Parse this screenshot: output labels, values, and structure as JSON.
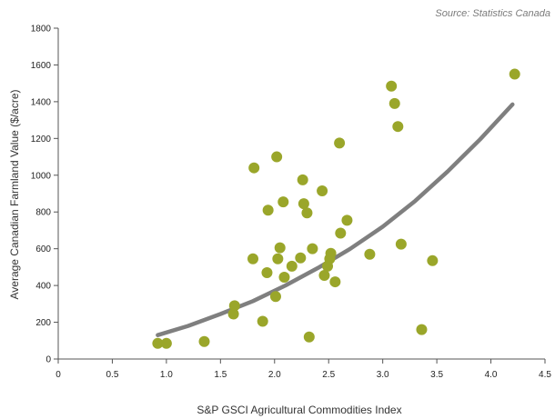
{
  "chart_data": {
    "type": "scatter",
    "source_note": "Source: Statistics Canada",
    "xlabel": "S&P GSCI Agricultural Commodities Index",
    "ylabel": "Average Canadian Farmland Value ($/acre)",
    "xlim": [
      0,
      4.5
    ],
    "ylim": [
      0,
      1800
    ],
    "xticks": [
      0,
      0.5,
      1.0,
      1.5,
      2.0,
      2.5,
      3.0,
      3.5,
      4.0,
      4.5
    ],
    "xtick_labels": [
      "0",
      "0.5",
      "1.0",
      "1.5",
      "2.0",
      "2.5",
      "3.0",
      "3.5",
      "4.0",
      "4.5"
    ],
    "yticks": [
      0,
      200,
      400,
      600,
      800,
      1000,
      1200,
      1400,
      1600,
      1800
    ],
    "ytick_labels": [
      "0",
      "200",
      "400",
      "600",
      "800",
      "1000",
      "1200",
      "1400",
      "1600",
      "1800"
    ],
    "grid": false,
    "colors": {
      "points": "#9aa62a",
      "trend": "#7f7f7f",
      "axis": "#555555"
    },
    "points": [
      {
        "x": 0.92,
        "y": 85
      },
      {
        "x": 1.0,
        "y": 85
      },
      {
        "x": 1.35,
        "y": 95
      },
      {
        "x": 1.62,
        "y": 245
      },
      {
        "x": 1.63,
        "y": 290
      },
      {
        "x": 1.8,
        "y": 545
      },
      {
        "x": 1.81,
        "y": 1040
      },
      {
        "x": 1.89,
        "y": 205
      },
      {
        "x": 1.93,
        "y": 470
      },
      {
        "x": 1.94,
        "y": 810
      },
      {
        "x": 2.01,
        "y": 340
      },
      {
        "x": 2.02,
        "y": 1100
      },
      {
        "x": 2.03,
        "y": 545
      },
      {
        "x": 2.05,
        "y": 605
      },
      {
        "x": 2.08,
        "y": 855
      },
      {
        "x": 2.09,
        "y": 445
      },
      {
        "x": 2.16,
        "y": 505
      },
      {
        "x": 2.24,
        "y": 550
      },
      {
        "x": 2.26,
        "y": 975
      },
      {
        "x": 2.27,
        "y": 845
      },
      {
        "x": 2.3,
        "y": 795
      },
      {
        "x": 2.32,
        "y": 120
      },
      {
        "x": 2.35,
        "y": 600
      },
      {
        "x": 2.44,
        "y": 915
      },
      {
        "x": 2.46,
        "y": 455
      },
      {
        "x": 2.49,
        "y": 505
      },
      {
        "x": 2.51,
        "y": 545
      },
      {
        "x": 2.52,
        "y": 575
      },
      {
        "x": 2.56,
        "y": 420
      },
      {
        "x": 2.6,
        "y": 1175
      },
      {
        "x": 2.61,
        "y": 685
      },
      {
        "x": 2.67,
        "y": 755
      },
      {
        "x": 2.88,
        "y": 570
      },
      {
        "x": 3.08,
        "y": 1485
      },
      {
        "x": 3.11,
        "y": 1390
      },
      {
        "x": 3.14,
        "y": 1265
      },
      {
        "x": 3.17,
        "y": 625
      },
      {
        "x": 3.36,
        "y": 160
      },
      {
        "x": 3.46,
        "y": 535
      },
      {
        "x": 4.22,
        "y": 1550
      }
    ],
    "trendline": {
      "type": "exponential",
      "x": [
        0.92,
        1.2,
        1.5,
        1.8,
        2.1,
        2.4,
        2.7,
        3.0,
        3.3,
        3.6,
        3.9,
        4.2
      ],
      "y": [
        130,
        180,
        245,
        315,
        400,
        495,
        600,
        720,
        860,
        1020,
        1195,
        1385
      ]
    }
  }
}
